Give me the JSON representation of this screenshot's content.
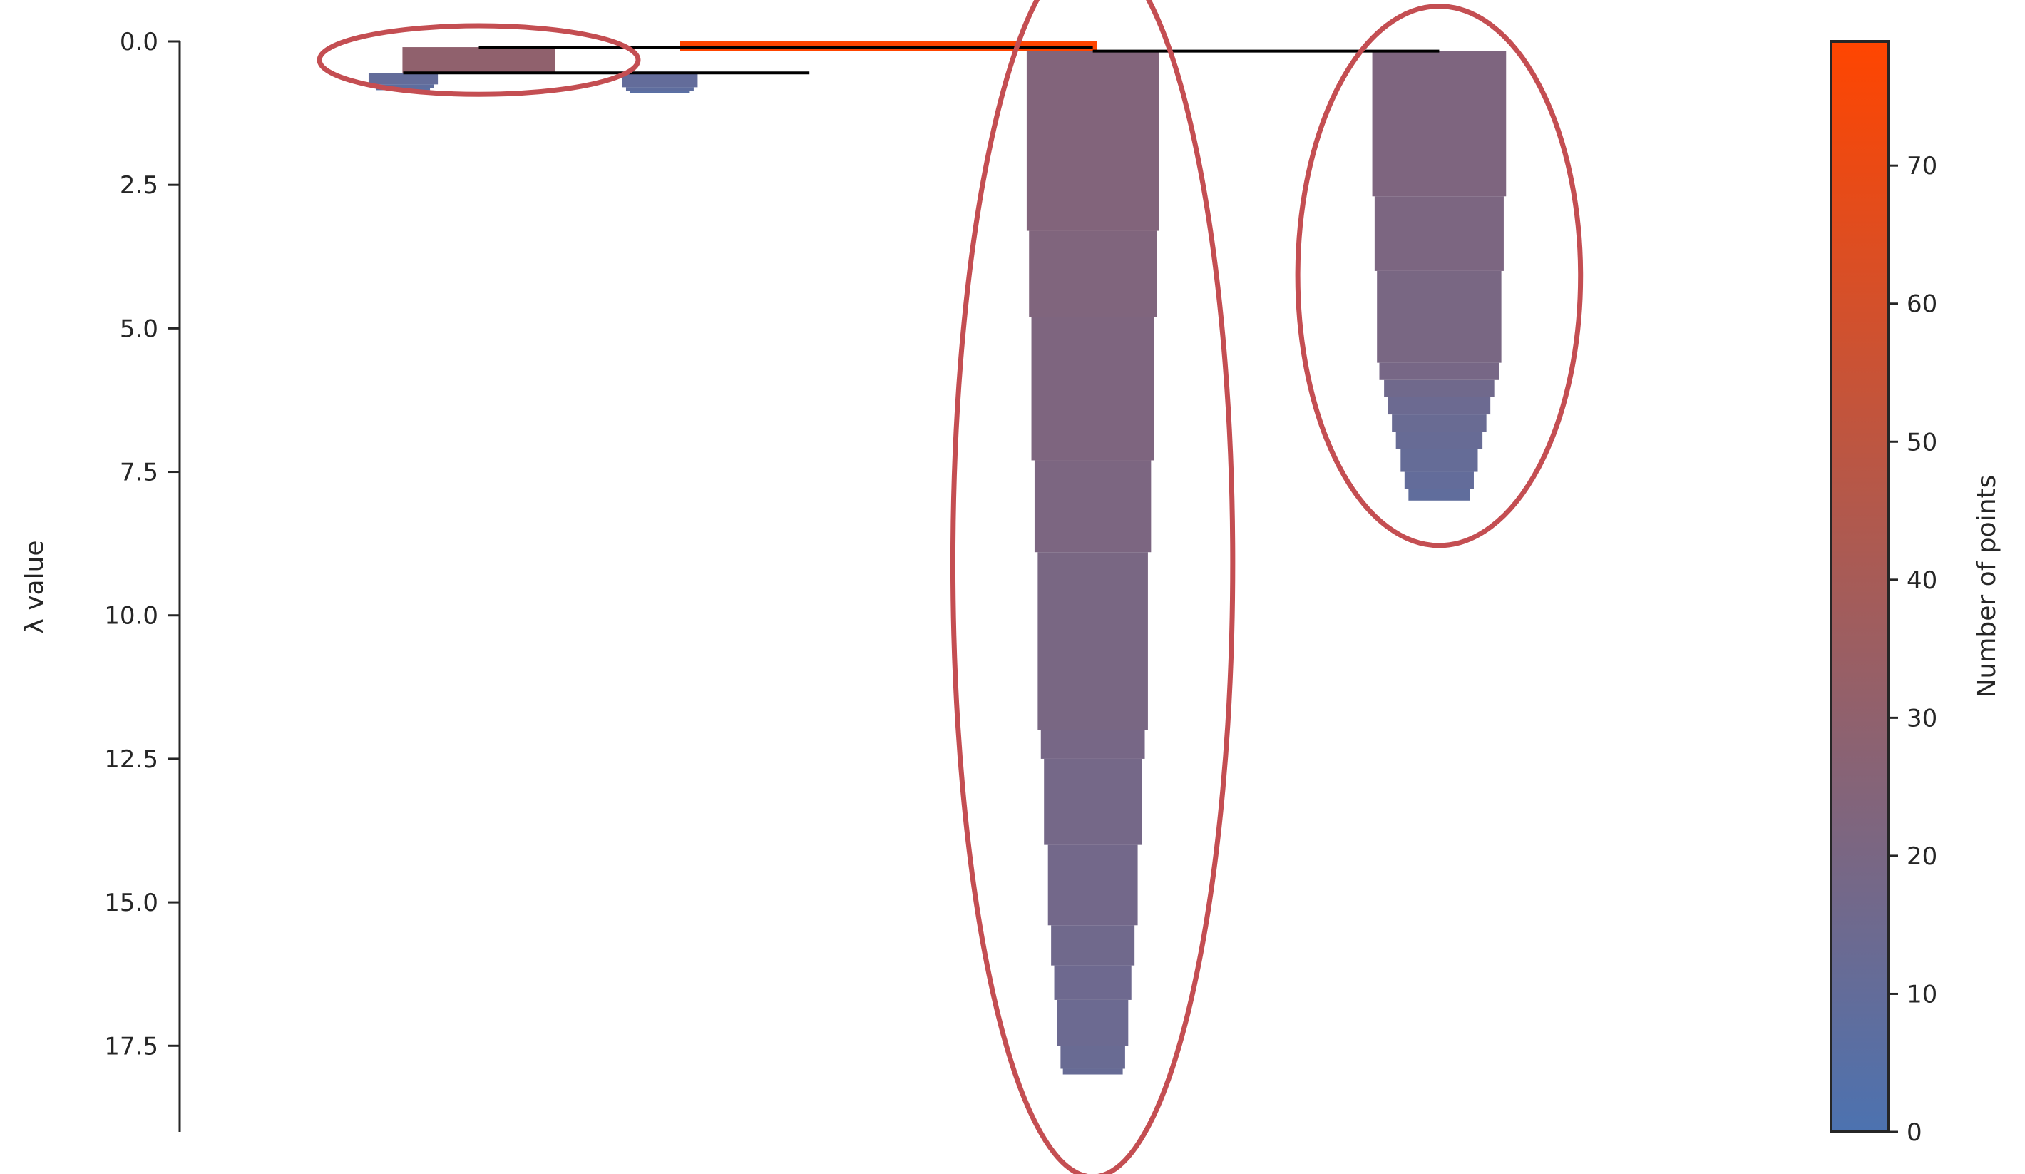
{
  "chart_data": {
    "type": "condensed_tree",
    "ylabel": "λ value",
    "y_axis": {
      "inverted": true,
      "range": [
        0,
        19
      ],
      "ticks": [
        0.0,
        2.5,
        5.0,
        7.5,
        10.0,
        12.5,
        15.0,
        17.5
      ],
      "tick_labels": [
        "0.0",
        "2.5",
        "5.0",
        "7.5",
        "10.0",
        "12.5",
        "15.0",
        "17.5"
      ]
    },
    "x_axis": {
      "range": [
        0,
        100
      ],
      "visible": false
    },
    "colorbar": {
      "label": "Number of points",
      "range": [
        0,
        79
      ],
      "ticks": [
        0,
        10,
        20,
        30,
        40,
        50,
        60,
        70
      ],
      "tick_labels": [
        "0",
        "10",
        "20",
        "30",
        "40",
        "50",
        "60",
        "70"
      ],
      "color_low": "#4c72b0",
      "color_high": "#ff4500"
    },
    "root": {
      "lambda_start": 0.0,
      "lambda_end": 0.12,
      "points": 79
    },
    "clusters": [
      {
        "id": "a",
        "center": 14.2,
        "lambda_start": 0.55,
        "lambda_end": 0.85,
        "profile": [
          [
            0.55,
            10,
            4.4
          ],
          [
            0.75,
            8,
            3.9
          ],
          [
            0.82,
            6,
            3.4
          ]
        ]
      },
      {
        "id": "b",
        "center": 19.0,
        "lambda_start": 0.1,
        "lambda_end": 0.55,
        "profile": [
          [
            0.1,
            30,
            9.7
          ]
        ],
        "selected": true
      },
      {
        "id": "c",
        "center": 30.5,
        "lambda_start": 0.55,
        "lambda_end": 0.9,
        "profile": [
          [
            0.55,
            10,
            4.8
          ],
          [
            0.8,
            8,
            4.3
          ],
          [
            0.87,
            6,
            3.8
          ]
        ]
      },
      {
        "id": "d",
        "center": 45.0,
        "lambda_start": 0.12,
        "lambda_end": 0.17,
        "profile": [
          [
            0.0,
            79,
            26.5
          ]
        ]
      },
      {
        "id": "e",
        "center": 58.0,
        "lambda_start": 0.17,
        "lambda_end": 18.0,
        "profile": [
          [
            0.17,
            24,
            8.4
          ],
          [
            3.3,
            23,
            8.1
          ],
          [
            4.8,
            22,
            7.8
          ],
          [
            7.3,
            21,
            7.4
          ],
          [
            8.9,
            20,
            7.0
          ],
          [
            12.0,
            19,
            6.6
          ],
          [
            12.5,
            18,
            6.2
          ],
          [
            14.0,
            17,
            5.7
          ],
          [
            15.4,
            16,
            5.3
          ],
          [
            16.1,
            15,
            4.9
          ],
          [
            16.7,
            14,
            4.5
          ],
          [
            17.5,
            13,
            4.1
          ],
          [
            17.9,
            12,
            3.8
          ]
        ],
        "selected": true
      },
      {
        "id": "f",
        "center": 80.0,
        "lambda_start": 0.17,
        "lambda_end": 8.0,
        "profile": [
          [
            0.17,
            22,
            8.5
          ],
          [
            2.7,
            21,
            8.2
          ],
          [
            4.0,
            20,
            7.9
          ],
          [
            5.6,
            19,
            7.6
          ],
          [
            5.9,
            16,
            7.0
          ],
          [
            6.2,
            14,
            6.5
          ],
          [
            6.5,
            13,
            6.0
          ],
          [
            6.8,
            12,
            5.5
          ],
          [
            7.1,
            11,
            4.9
          ],
          [
            7.5,
            10,
            4.4
          ],
          [
            7.8,
            9,
            3.9
          ]
        ],
        "selected": true
      }
    ],
    "links": [
      {
        "lambda": 0.55,
        "x_from": 14.2,
        "x_to": 40.0
      },
      {
        "lambda": 0.1,
        "x_from": 19.0,
        "x_to": 58.0
      },
      {
        "lambda": 0.17,
        "x_from": 58.0,
        "x_to": 80.0
      }
    ],
    "highlight_color": "#c44e52"
  }
}
